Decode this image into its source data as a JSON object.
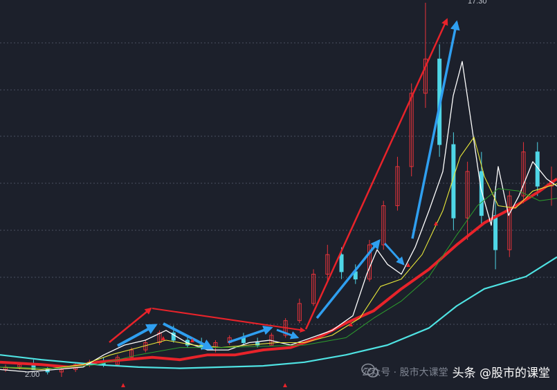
{
  "chart_data": {
    "type": "candlestick",
    "title": "",
    "xlabel": "",
    "ylabel": "",
    "high_label": "17.30",
    "low_label": "2.00",
    "grid": true,
    "colors": {
      "background": "#1c202b",
      "up": "#e8333a",
      "down": "#4fd6e6",
      "ma_long": "#e8232a",
      "ma_longer": "#4fe3e3",
      "ma5": "#ffffff",
      "ma10": "#e9e93a",
      "ma20": "#2da02d",
      "arrow_red": "#e8232a",
      "arrow_blue": "#2f9ff0"
    },
    "series": [
      {
        "name": "",
        "points": [
          [
            0,
            2.6
          ],
          [
            60,
            2.5
          ],
          [
            100,
            2.4
          ],
          [
            140,
            2.6
          ],
          [
            180,
            2.7
          ],
          [
            220,
            2.8
          ],
          [
            260,
            2.7
          ],
          [
            300,
            2.9
          ],
          [
            340,
            2.9
          ],
          [
            380,
            3.1
          ],
          [
            420,
            3.2
          ],
          [
            460,
            3.6
          ],
          [
            500,
            4.2
          ],
          [
            540,
            4.7
          ],
          [
            580,
            5.6
          ],
          [
            620,
            6.4
          ],
          [
            660,
            7.4
          ],
          [
            700,
            8.3
          ],
          [
            740,
            8.9
          ],
          [
            780,
            9.6
          ],
          [
            805,
            10.1
          ]
        ]
      },
      {
        "name": "",
        "points": [
          [
            0,
            2.9
          ],
          [
            60,
            2.7
          ],
          [
            100,
            2.6
          ],
          [
            140,
            2.5
          ],
          [
            200,
            2.4
          ],
          [
            260,
            2.35
          ],
          [
            320,
            2.4
          ],
          [
            380,
            2.45
          ],
          [
            440,
            2.6
          ],
          [
            500,
            2.9
          ],
          [
            560,
            3.3
          ],
          [
            620,
            4.0
          ],
          [
            660,
            4.9
          ],
          [
            700,
            5.6
          ],
          [
            760,
            6.1
          ],
          [
            805,
            6.9
          ]
        ]
      },
      {
        "name": "",
        "points": [
          [
            0,
            2.3
          ],
          [
            40,
            2.2
          ],
          [
            80,
            2.3
          ],
          [
            120,
            2.4
          ],
          [
            150,
            2.9
          ],
          [
            180,
            3.3
          ],
          [
            210,
            3.5
          ],
          [
            240,
            3.9
          ],
          [
            270,
            3.4
          ],
          [
            300,
            3.1
          ],
          [
            330,
            3.1
          ],
          [
            360,
            3.4
          ],
          [
            390,
            3.5
          ],
          [
            420,
            3.3
          ],
          [
            450,
            3.6
          ],
          [
            480,
            3.9
          ],
          [
            510,
            4.5
          ],
          [
            530,
            6.2
          ],
          [
            545,
            7.2
          ],
          [
            560,
            6.6
          ],
          [
            580,
            6.2
          ],
          [
            600,
            7.3
          ],
          [
            620,
            8.8
          ],
          [
            640,
            10.4
          ],
          [
            655,
            13.5
          ],
          [
            668,
            14.9
          ],
          [
            680,
            12.6
          ],
          [
            695,
            9.7
          ],
          [
            710,
            8.2
          ],
          [
            720,
            10.6
          ],
          [
            735,
            8.6
          ],
          [
            750,
            9.4
          ],
          [
            770,
            10.8
          ],
          [
            790,
            10.1
          ],
          [
            805,
            9.8
          ]
        ]
      },
      {
        "name": "",
        "points": [
          [
            0,
            2.4
          ],
          [
            60,
            2.3
          ],
          [
            120,
            2.5
          ],
          [
            160,
            2.9
          ],
          [
            200,
            3.2
          ],
          [
            240,
            3.5
          ],
          [
            280,
            3.3
          ],
          [
            320,
            3.2
          ],
          [
            360,
            3.3
          ],
          [
            400,
            3.4
          ],
          [
            440,
            3.4
          ],
          [
            480,
            3.7
          ],
          [
            520,
            4.4
          ],
          [
            550,
            5.7
          ],
          [
            580,
            6.0
          ],
          [
            610,
            7.0
          ],
          [
            640,
            8.8
          ],
          [
            665,
            11.0
          ],
          [
            685,
            11.8
          ],
          [
            700,
            10.2
          ],
          [
            720,
            9.0
          ],
          [
            745,
            8.9
          ],
          [
            770,
            9.6
          ],
          [
            805,
            9.9
          ]
        ]
      },
      {
        "name": "",
        "points": [
          [
            0,
            2.4
          ],
          [
            80,
            2.35
          ],
          [
            140,
            2.5
          ],
          [
            200,
            2.9
          ],
          [
            260,
            3.2
          ],
          [
            320,
            3.2
          ],
          [
            380,
            3.25
          ],
          [
            440,
            3.3
          ],
          [
            500,
            3.6
          ],
          [
            540,
            4.4
          ],
          [
            580,
            5.1
          ],
          [
            620,
            6.1
          ],
          [
            660,
            7.8
          ],
          [
            690,
            9.0
          ],
          [
            720,
            9.7
          ],
          [
            750,
            9.6
          ],
          [
            780,
            9.2
          ],
          [
            805,
            9.3
          ]
        ]
      }
    ],
    "ohlc_sample": [
      [
        2.3,
        2.5,
        2.2,
        2.4
      ],
      [
        2.4,
        2.6,
        2.3,
        2.5
      ],
      [
        2.5,
        2.7,
        2.4,
        2.3
      ],
      [
        2.3,
        2.4,
        2.1,
        2.2
      ],
      [
        2.2,
        2.4,
        2.0,
        2.3
      ],
      [
        2.3,
        2.6,
        2.2,
        2.5
      ],
      [
        2.5,
        2.7,
        2.4,
        2.6
      ],
      [
        2.6,
        2.8,
        2.4,
        2.5
      ],
      [
        2.5,
        2.9,
        2.5,
        2.8
      ],
      [
        2.8,
        3.2,
        2.7,
        3.1
      ],
      [
        3.1,
        3.5,
        3.0,
        3.4
      ],
      [
        3.4,
        3.9,
        3.3,
        3.8
      ],
      [
        3.8,
        4.1,
        3.4,
        3.5
      ],
      [
        3.5,
        3.7,
        3.2,
        3.3
      ],
      [
        3.3,
        3.6,
        3.1,
        3.2
      ],
      [
        3.2,
        3.5,
        3.0,
        3.4
      ],
      [
        3.4,
        3.7,
        3.3,
        3.6
      ],
      [
        3.6,
        3.8,
        3.3,
        3.4
      ],
      [
        3.4,
        3.6,
        3.2,
        3.3
      ],
      [
        3.3,
        3.8,
        3.3,
        3.7
      ],
      [
        3.7,
        4.4,
        3.6,
        4.3
      ],
      [
        4.3,
        5.2,
        4.2,
        5.0
      ],
      [
        5.0,
        6.4,
        4.9,
        6.2
      ],
      [
        6.2,
        7.4,
        5.9,
        7.0
      ],
      [
        7.0,
        7.3,
        6.0,
        6.3
      ],
      [
        6.3,
        6.6,
        5.8,
        6.0
      ],
      [
        6.0,
        7.6,
        5.9,
        7.4
      ],
      [
        7.4,
        9.2,
        7.2,
        9.0
      ],
      [
        9.0,
        11.0,
        8.8,
        10.6
      ],
      [
        10.6,
        14.0,
        10.2,
        13.6
      ],
      [
        13.6,
        17.3,
        13.0,
        15.0
      ],
      [
        15.0,
        15.6,
        11.0,
        11.5
      ],
      [
        11.5,
        12.0,
        8.0,
        8.5
      ],
      [
        8.5,
        10.8,
        7.6,
        10.4
      ],
      [
        10.4,
        11.2,
        8.2,
        8.6
      ],
      [
        8.6,
        9.8,
        6.4,
        7.2
      ],
      [
        7.2,
        9.6,
        6.9,
        9.4
      ],
      [
        9.4,
        11.6,
        9.1,
        11.2
      ],
      [
        11.2,
        11.6,
        9.4,
        9.8
      ],
      [
        9.8,
        10.6,
        9.0,
        10.0
      ]
    ]
  }
}
